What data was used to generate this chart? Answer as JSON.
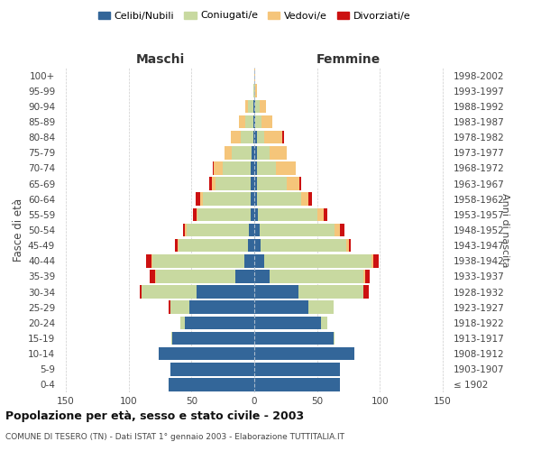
{
  "age_groups": [
    "100+",
    "95-99",
    "90-94",
    "85-89",
    "80-84",
    "75-79",
    "70-74",
    "65-69",
    "60-64",
    "55-59",
    "50-54",
    "45-49",
    "40-44",
    "35-39",
    "30-34",
    "25-29",
    "20-24",
    "15-19",
    "10-14",
    "5-9",
    "0-4"
  ],
  "birth_years": [
    "≤ 1902",
    "1903-1907",
    "1908-1912",
    "1913-1917",
    "1918-1922",
    "1923-1927",
    "1928-1932",
    "1933-1937",
    "1938-1942",
    "1943-1947",
    "1948-1952",
    "1953-1957",
    "1958-1962",
    "1963-1967",
    "1968-1972",
    "1973-1977",
    "1978-1982",
    "1983-1987",
    "1988-1992",
    "1993-1997",
    "1998-2002"
  ],
  "male_celibe": [
    0,
    0,
    1,
    1,
    1,
    2,
    3,
    3,
    3,
    3,
    4,
    5,
    8,
    15,
    46,
    52,
    55,
    65,
    76,
    67,
    68
  ],
  "male_coniugato": [
    0,
    1,
    4,
    6,
    10,
    16,
    22,
    28,
    38,
    42,
    50,
    55,
    73,
    63,
    44,
    15,
    4,
    1,
    0,
    0,
    0
  ],
  "male_vedovo": [
    0,
    0,
    2,
    5,
    8,
    6,
    7,
    3,
    2,
    1,
    1,
    1,
    1,
    1,
    0,
    0,
    0,
    0,
    0,
    0,
    0
  ],
  "male_divorziato": [
    0,
    0,
    0,
    0,
    0,
    0,
    1,
    2,
    4,
    3,
    2,
    2,
    4,
    4,
    1,
    1,
    0,
    0,
    0,
    0,
    0
  ],
  "female_nubile": [
    0,
    0,
    1,
    1,
    2,
    2,
    2,
    2,
    2,
    3,
    4,
    5,
    8,
    12,
    35,
    43,
    53,
    63,
    80,
    68,
    68
  ],
  "female_coniugata": [
    0,
    1,
    3,
    5,
    6,
    10,
    15,
    24,
    35,
    47,
    60,
    68,
    85,
    75,
    52,
    20,
    5,
    1,
    0,
    0,
    0
  ],
  "female_vedova": [
    1,
    1,
    5,
    8,
    14,
    14,
    16,
    10,
    6,
    5,
    4,
    2,
    2,
    1,
    0,
    0,
    0,
    0,
    0,
    0,
    0
  ],
  "female_divorziata": [
    0,
    0,
    0,
    0,
    2,
    0,
    0,
    1,
    3,
    3,
    4,
    2,
    4,
    4,
    4,
    0,
    0,
    0,
    0,
    0,
    0
  ],
  "colors": {
    "celibe": "#336699",
    "coniugato": "#c8d9a0",
    "vedovo": "#f5c57a",
    "divorziato": "#cc1111"
  },
  "title_main": "Popolazione per età, sesso e stato civile - 2003",
  "title_sub": "COMUNE DI TESERO (TN) - Dati ISTAT 1° gennaio 2003 - Elaborazione TUTTITALIA.IT",
  "xlabel_left": "Maschi",
  "xlabel_right": "Femmine",
  "ylabel_left": "Fasce di età",
  "ylabel_right": "Anni di nascita",
  "xlim": 155,
  "background_color": "#ffffff",
  "grid_color": "#cccccc"
}
